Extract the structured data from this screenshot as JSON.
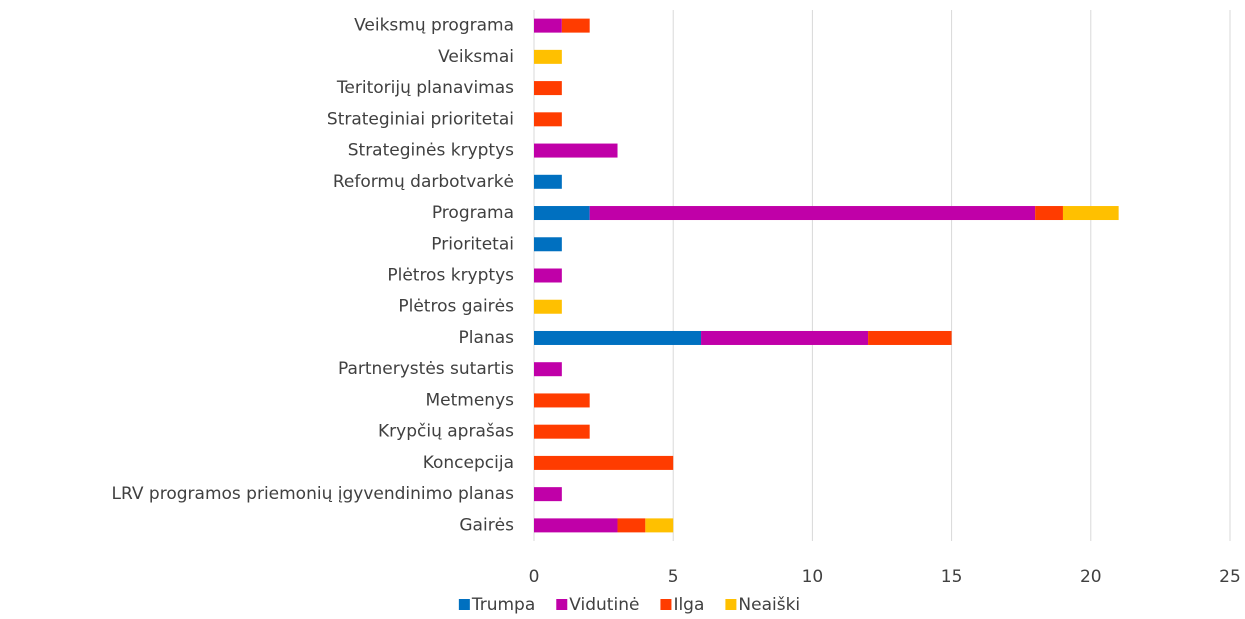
{
  "chart_data": {
    "type": "stacked-barh",
    "categories": [
      "Veiksmų programa",
      "Veiksmai",
      "Teritorijų planavimas",
      "Strateginiai prioritetai",
      "Strateginės kryptys",
      "Reformų darbotvarkė",
      "Programa",
      "Prioritetai",
      "Plėtros kryptys",
      "Plėtros gairės",
      "Planas",
      "Partnerystės sutartis",
      "Metmenys",
      "Krypčių aprašas",
      "Koncepcija",
      "LRV programos priemonių įgyvendinimo planas",
      "Gairės"
    ],
    "series": [
      {
        "name": "Trumpa",
        "color": "#0070c0",
        "values": [
          0,
          0,
          0,
          0,
          0,
          1,
          2,
          1,
          0,
          0,
          6,
          0,
          0,
          0,
          0,
          0,
          0
        ]
      },
      {
        "name": "Vidutinė",
        "color": "#c000a8",
        "values": [
          1,
          0,
          0,
          0,
          3,
          0,
          16,
          0,
          1,
          0,
          6,
          1,
          0,
          0,
          0,
          1,
          3
        ]
      },
      {
        "name": "Ilga",
        "color": "#ff3c00",
        "values": [
          1,
          0,
          1,
          1,
          0,
          0,
          1,
          0,
          0,
          0,
          3,
          0,
          2,
          2,
          5,
          0,
          1
        ]
      },
      {
        "name": "Neaiški",
        "color": "#ffc000",
        "values": [
          0,
          1,
          0,
          0,
          0,
          0,
          2,
          0,
          0,
          1,
          0,
          0,
          0,
          0,
          0,
          0,
          1
        ]
      }
    ],
    "xlim": [
      0,
      25
    ],
    "xticks": [
      0,
      5,
      10,
      15,
      20,
      25
    ],
    "grid": true,
    "legend": "bottom"
  }
}
